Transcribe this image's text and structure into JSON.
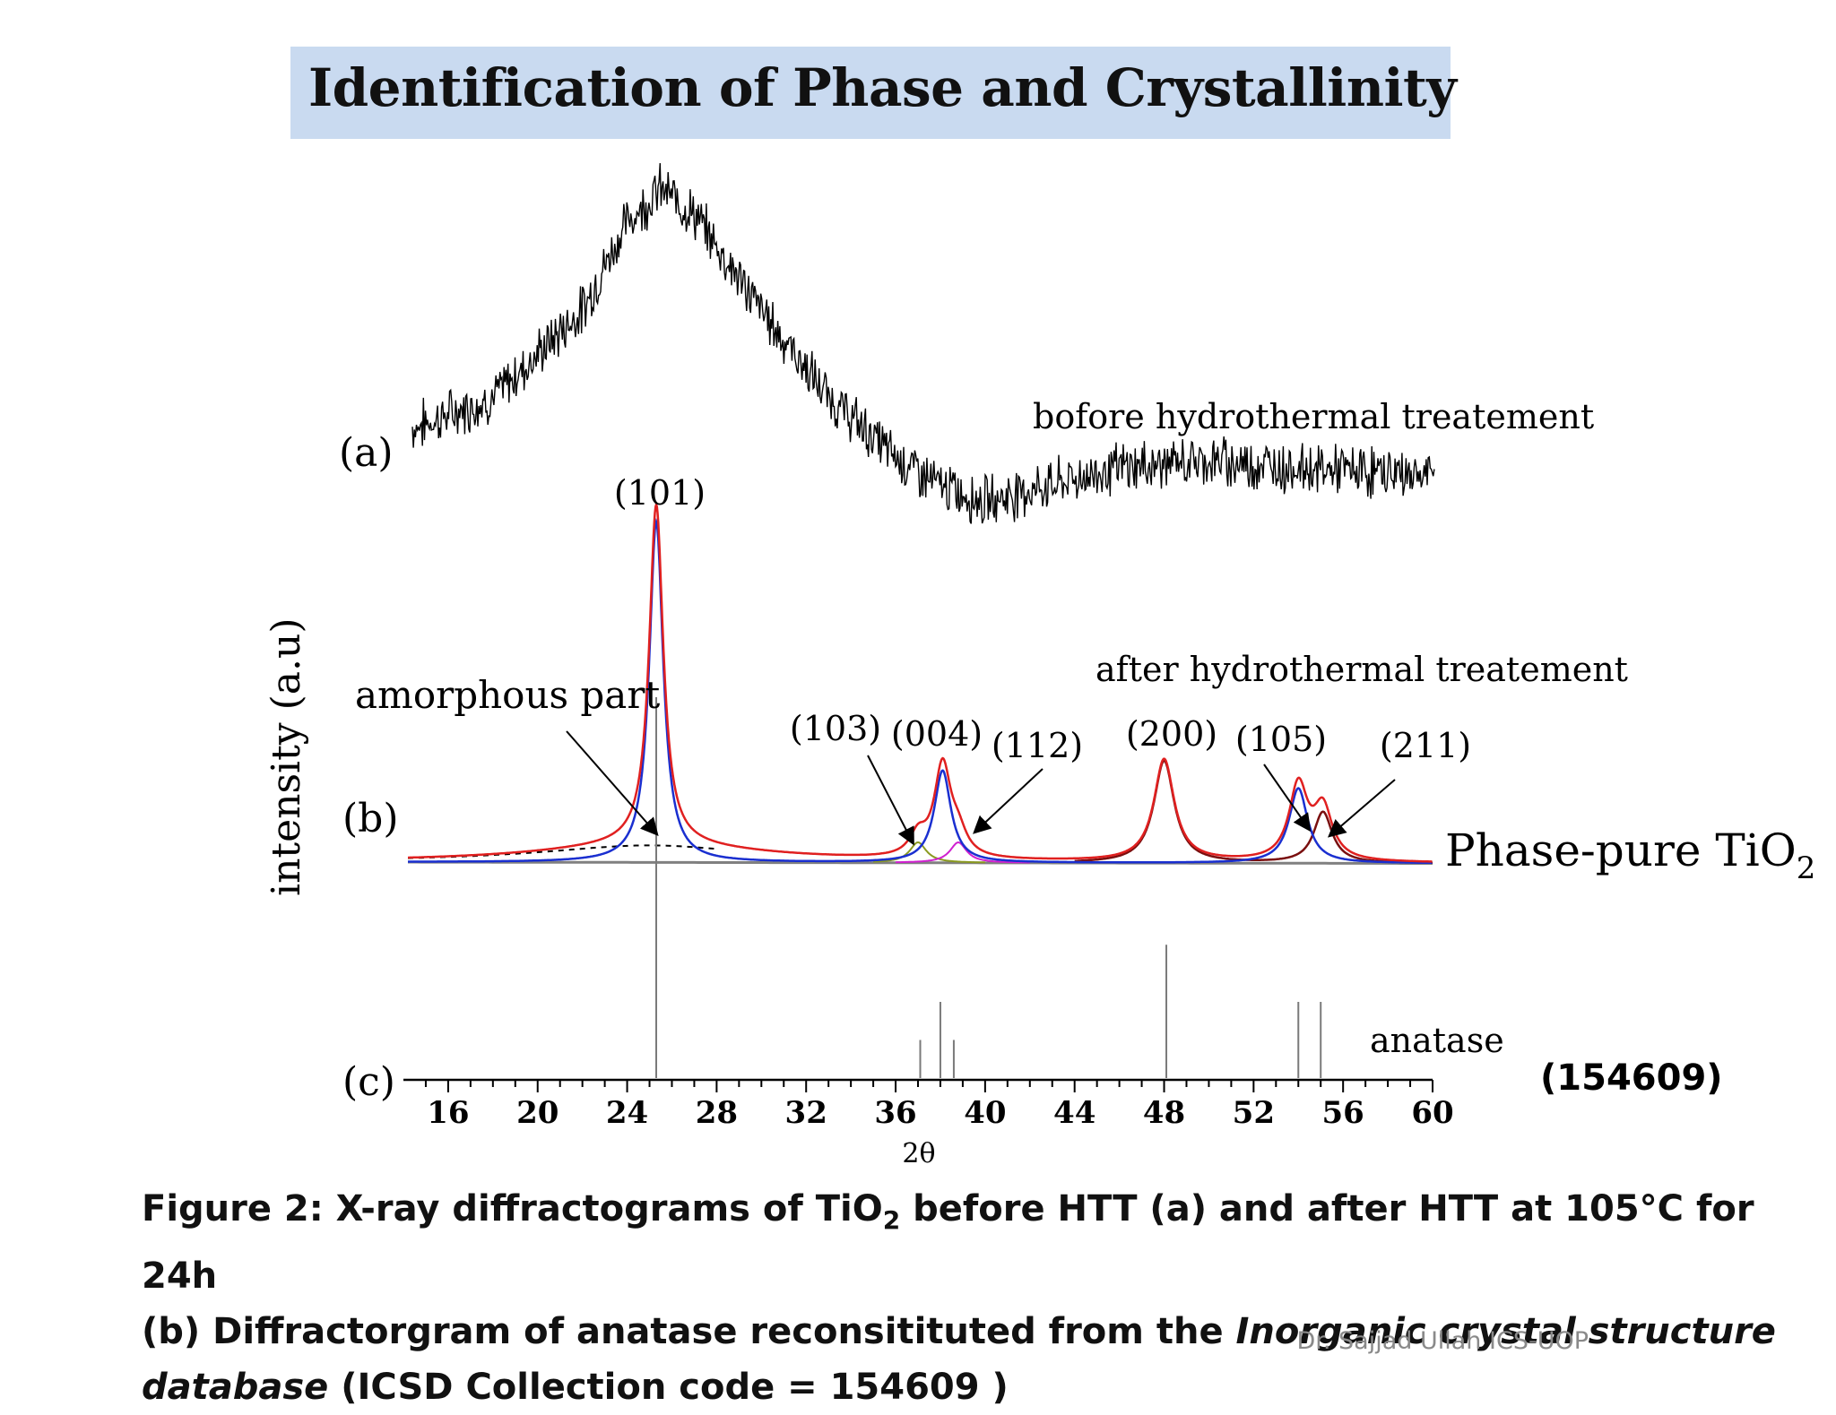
{
  "slide": {
    "title": "Identification of Phase and Crystallinity",
    "caption": {
      "line1_prefix": "Figure 2:  X-ray diffractograms of TiO",
      "line1_sub": "2",
      "line1_suffix": " before HTT (a) and after HTT at 105°C for 24h",
      "line2_prefix": "(b) Diffractorgram of anatase reconsitituted from the ",
      "line2_italic": "Inorganic crystal structure",
      "line3_italic": "database",
      "line3_suffix": " (ICSD Collection code = 154609 )"
    },
    "credit": "Dr. Sajjad Ullah ICS-UOP"
  },
  "chart_data": {
    "type": "line",
    "xlabel": "2θ",
    "ylabel": "intensity (a.u)",
    "xlim": [
      14,
      60
    ],
    "xticks": [
      16,
      20,
      24,
      28,
      32,
      36,
      40,
      44,
      48,
      52,
      56,
      60
    ],
    "curve_a": {
      "label": "(a)",
      "annotation": "bofore hydrothermal treatement",
      "color": "#000000",
      "points": [
        [
          14.5,
          0.3
        ],
        [
          18,
          0.38
        ],
        [
          22,
          0.62
        ],
        [
          24,
          0.86
        ],
        [
          25.5,
          0.95
        ],
        [
          27,
          0.88
        ],
        [
          30,
          0.62
        ],
        [
          33,
          0.38
        ],
        [
          36,
          0.22
        ],
        [
          38,
          0.14
        ],
        [
          40,
          0.1
        ],
        [
          42,
          0.13
        ],
        [
          46,
          0.19
        ],
        [
          50,
          0.21
        ],
        [
          54,
          0.19
        ],
        [
          60,
          0.17
        ]
      ]
    },
    "curve_b": {
      "label": "(b)",
      "annotation": "after hydrothermal treatement",
      "phase_label_main": "Phase-pure TiO",
      "phase_label_sub": "2",
      "amorphous_label": "amorphous part",
      "series": [
        {
          "role": "fit",
          "color": "#e02020"
        },
        {
          "role": "anatase-component",
          "color": "#1a2fd0"
        },
        {
          "role": "minor-component-103",
          "color": "#8a9a20"
        },
        {
          "role": "minor-component-112",
          "color": "#d020d0"
        },
        {
          "role": "component-200-211",
          "color": "#7a0f0f"
        },
        {
          "role": "baseline",
          "color": "#808080"
        },
        {
          "role": "amorphous",
          "color": "#000000"
        }
      ],
      "peaks": [
        {
          "hkl": "(101)",
          "x": 25.3,
          "height": 1.0
        },
        {
          "hkl": "(103)",
          "x": 37.0,
          "height": 0.06
        },
        {
          "hkl": "(004)",
          "x": 38.1,
          "height": 0.27
        },
        {
          "hkl": "(112)",
          "x": 38.8,
          "height": 0.06
        },
        {
          "hkl": "(200)",
          "x": 48.0,
          "height": 0.3
        },
        {
          "hkl": "(105)",
          "x": 54.0,
          "height": 0.22
        },
        {
          "hkl": "(211)",
          "x": 55.1,
          "height": 0.15
        }
      ]
    },
    "curve_c": {
      "label": "(c)",
      "annotation": "anatase",
      "code": "(154609)",
      "sticks": [
        {
          "x": 25.3,
          "height": 1.0
        },
        {
          "x": 37.1,
          "height": 0.1
        },
        {
          "x": 38.0,
          "height": 0.2
        },
        {
          "x": 38.6,
          "height": 0.1
        },
        {
          "x": 48.1,
          "height": 0.35
        },
        {
          "x": 54.0,
          "height": 0.2
        },
        {
          "x": 55.0,
          "height": 0.2
        }
      ]
    }
  }
}
